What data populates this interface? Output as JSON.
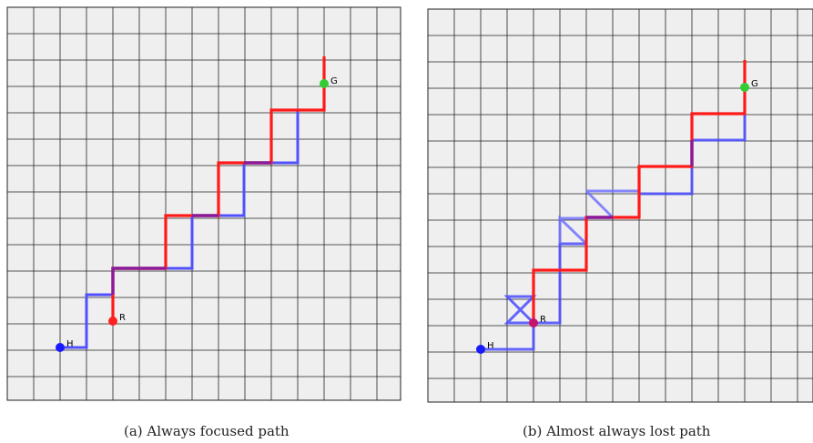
{
  "panels": [
    {
      "caption": "(a) Always focused path",
      "markers": {
        "start": {
          "label": "H",
          "color": "#1a1aff"
        },
        "robot": {
          "label": "R",
          "color": "#ff2020"
        },
        "goal": {
          "label": "G",
          "color": "#33cc33"
        }
      },
      "paths": [
        {
          "color": "#4a4aff",
          "segments": "human"
        },
        {
          "color": "#ff1a1a",
          "segments": "robot"
        }
      ]
    },
    {
      "caption": "(b) Almost always lost path",
      "markers": {
        "start": {
          "label": "H",
          "color": "#1a1aff"
        },
        "robot": {
          "label": "R",
          "color": "#c4156a"
        },
        "goal": {
          "label": "G",
          "color": "#33cc33"
        }
      },
      "paths": [
        {
          "color": "#4a4aff",
          "segments": "human"
        },
        {
          "color": "#ff1a1a",
          "segments": "robot"
        }
      ]
    }
  ],
  "colors": {
    "grid_bg": "#efefef",
    "grid_line": "#222222",
    "human": "#4a4aff",
    "robot": "#ff1a1a",
    "overlap": "#8a1a8a"
  }
}
